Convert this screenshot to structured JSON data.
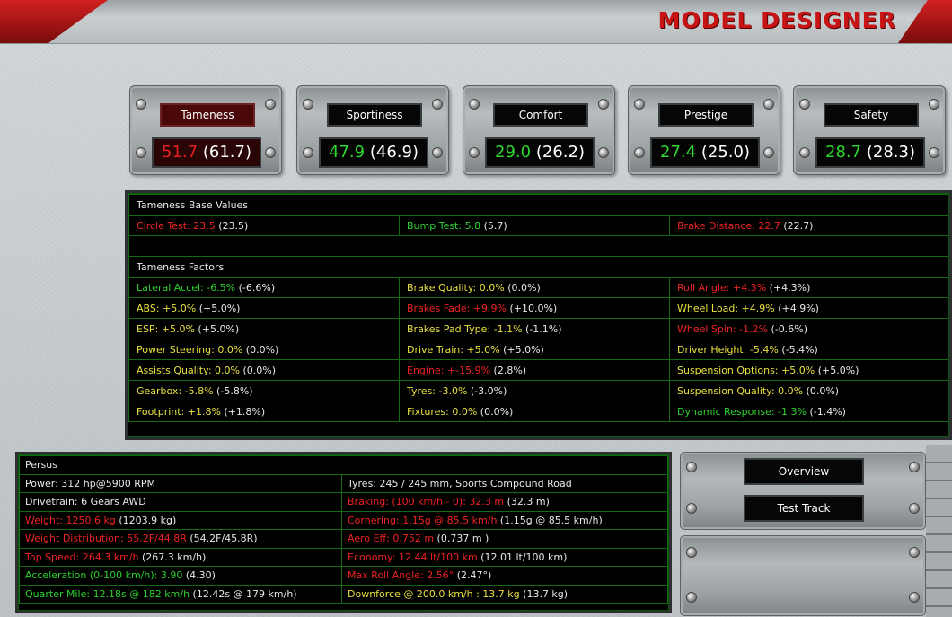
{
  "header": {
    "title": "MODEL DESIGNER"
  },
  "stats": [
    {
      "label": "Tameness",
      "value": "51.7",
      "prev": "(61.7)",
      "color": "red",
      "active": true
    },
    {
      "label": "Sportiness",
      "value": "47.9",
      "prev": "(46.9)",
      "color": "green",
      "active": false
    },
    {
      "label": "Comfort",
      "value": "29.0",
      "prev": "(26.2)",
      "color": "green",
      "active": false
    },
    {
      "label": "Prestige",
      "value": "27.4",
      "prev": "(25.0)",
      "color": "green",
      "active": false
    },
    {
      "label": "Safety",
      "value": "28.7",
      "prev": "(28.3)",
      "color": "green",
      "active": false
    }
  ],
  "base_values": {
    "title": "Tameness Base Values",
    "items": [
      {
        "label": "Circle Test: 23.5",
        "prev": " (23.5)",
        "color": "red"
      },
      {
        "label": "Bump Test: 5.8",
        "prev": " (5.7)",
        "color": "green"
      },
      {
        "label": "Brake Distance: 22.7",
        "prev": " (22.7)",
        "color": "red"
      }
    ]
  },
  "factors": {
    "title": "Tameness Factors",
    "rows": [
      [
        {
          "label": "Lateral Accel: -6.5%",
          "prev": " (-6.6%)",
          "color": "green"
        },
        {
          "label": "Brake Quality: 0.0%",
          "prev": " (0.0%)",
          "color": "yellow"
        },
        {
          "label": "Roll Angle: +4.3%",
          "prev": " (+4.3%)",
          "color": "red"
        }
      ],
      [
        {
          "label": "ABS: +5.0%",
          "prev": " (+5.0%)",
          "color": "yellow"
        },
        {
          "label": "Brakes Fade: +9.9%",
          "prev": " (+10.0%)",
          "color": "red"
        },
        {
          "label": "Wheel Load: +4.9%",
          "prev": " (+4.9%)",
          "color": "yellow"
        }
      ],
      [
        {
          "label": "ESP: +5.0%",
          "prev": " (+5.0%)",
          "color": "yellow"
        },
        {
          "label": "Brakes Pad Type: -1.1%",
          "prev": " (-1.1%)",
          "color": "yellow"
        },
        {
          "label": "Wheel Spin: -1.2%",
          "prev": " (-0.6%)",
          "color": "red"
        }
      ],
      [
        {
          "label": "Power Steering: 0.0%",
          "prev": " (0.0%)",
          "color": "yellow"
        },
        {
          "label": "Drive Train: +5.0%",
          "prev": " (+5.0%)",
          "color": "yellow"
        },
        {
          "label": "Driver Height: -5.4%",
          "prev": " (-5.4%)",
          "color": "yellow"
        }
      ],
      [
        {
          "label": "Assists Quality: 0.0%",
          "prev": " (0.0%)",
          "color": "yellow"
        },
        {
          "label": "Engine: +-15.9%",
          "prev": " (2.8%)",
          "color": "red"
        },
        {
          "label": "Suspension Options: +5.0%",
          "prev": " (+5.0%)",
          "color": "yellow"
        }
      ],
      [
        {
          "label": "Gearbox: -5.8%",
          "prev": " (-5.8%)",
          "color": "yellow"
        },
        {
          "label": "Tyres: -3.0%",
          "prev": " (-3.0%)",
          "color": "yellow"
        },
        {
          "label": "Suspension Quality: 0.0%",
          "prev": " (0.0%)",
          "color": "yellow"
        }
      ],
      [
        {
          "label": "Footprint: +1.8%",
          "prev": " (+1.8%)",
          "color": "yellow"
        },
        {
          "label": "Fixtures: 0.0%",
          "prev": " (0.0%)",
          "color": "yellow"
        },
        {
          "label": "Dynamic Response: -1.3%",
          "prev": " (-1.4%)",
          "color": "green"
        }
      ]
    ]
  },
  "summary": {
    "title": "Persus",
    "rows": [
      [
        {
          "label": "Power: 312 hp@5900 RPM",
          "prev": "",
          "color": "white"
        },
        {
          "label": "Tyres: 245 / 245 mm, Sports Compound Road",
          "prev": "",
          "color": "white"
        }
      ],
      [
        {
          "label": "Drivetrain: 6 Gears AWD",
          "prev": "",
          "color": "white"
        },
        {
          "label": "Braking: (100 km/h - 0): 32.3 m",
          "prev": " (32.3 m)",
          "color": "red"
        }
      ],
      [
        {
          "label": "Weight: 1250.6 kg",
          "prev": " (1203.9 kg)",
          "color": "red"
        },
        {
          "label": "Cornering: 1.15g @ 85.5 km/h",
          "prev": " (1.15g @ 85.5 km/h)",
          "color": "red"
        }
      ],
      [
        {
          "label": "Weight Distribution: 55.2F/44.8R",
          "prev": " (54.2F/45.8R)",
          "color": "red"
        },
        {
          "label": "Aero Eff: 0.752 m",
          "prev": "  (0.737 m )",
          "color": "red"
        }
      ],
      [
        {
          "label": "Top Speed: 264.3 km/h",
          "prev": " (267.3 km/h)",
          "color": "red"
        },
        {
          "label": "Economy: 12.44 lt/100 km",
          "prev": " (12.01 lt/100 km)",
          "color": "red"
        }
      ],
      [
        {
          "label": "Acceleration (0-100 km/h): 3.90",
          "prev": " (4.30)",
          "color": "green"
        },
        {
          "label": "Max Roll Angle: 2.56°",
          "prev": " (2.47°)",
          "color": "red"
        }
      ],
      [
        {
          "label": "Quarter Mile: 12.18s @ 182 km/h",
          "prev": " (12.42s @ 179 km/h)",
          "color": "green"
        },
        {
          "label": "Downforce @ 200.0 km/h : 13.7 kg",
          "prev": " (13.7 kg)",
          "color": "yellow"
        }
      ]
    ]
  },
  "buttons": {
    "overview": "Overview",
    "test_track": "Test Track"
  },
  "colors": {
    "red": "#ee2222",
    "green": "#2fd02f",
    "yellow": "#e8e040",
    "white": "#e8e8e8"
  }
}
